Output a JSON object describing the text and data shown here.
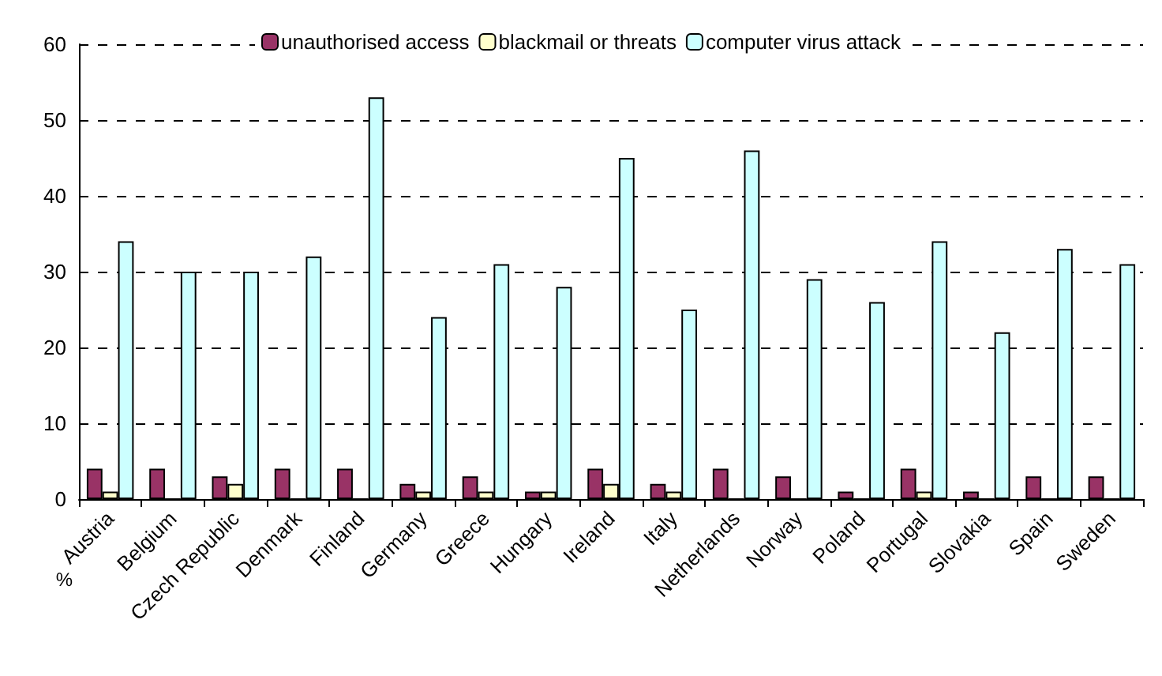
{
  "chart_data": {
    "type": "bar",
    "ylabel": "%",
    "categories": [
      "Austria",
      "Belgium",
      "Czech Republic",
      "Denmark",
      "Finland",
      "Germany",
      "Greece",
      "Hungary",
      "Ireland",
      "Italy",
      "Netherlands",
      "Norway",
      "Poland",
      "Portugal",
      "Slovakia",
      "Spain",
      "Sweden"
    ],
    "series": [
      {
        "name": "unauthorised access",
        "color": "#993366",
        "values": [
          4,
          4,
          3,
          4,
          4,
          2,
          3,
          1,
          4,
          2,
          4,
          3,
          1,
          4,
          1,
          3,
          3
        ]
      },
      {
        "name": "blackmail or threats",
        "color": "#ffffcc",
        "values": [
          1,
          0,
          2,
          0,
          0,
          1,
          1,
          1,
          2,
          1,
          0,
          0,
          0,
          1,
          0,
          0,
          0
        ]
      },
      {
        "name": "computer virus attack",
        "color": "#ccffff",
        "values": [
          34,
          30,
          30,
          32,
          53,
          24,
          31,
          28,
          45,
          25,
          46,
          29,
          26,
          34,
          22,
          33,
          31
        ]
      }
    ],
    "ylim": [
      0,
      60
    ],
    "yticks": [
      0,
      10,
      20,
      30,
      40,
      50,
      60
    ],
    "grid": "y",
    "legend": "top"
  }
}
